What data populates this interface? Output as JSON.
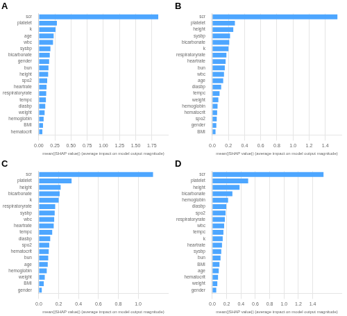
{
  "chart_data": [
    {
      "type": "bar",
      "orientation": "horizontal",
      "title": "A",
      "x_label": "mean(|SHAP value|) (average impact on model output magnitude)",
      "categories": [
        "scr",
        "platelet",
        "k",
        "age",
        "wbc",
        "sysbp",
        "bicarbonate",
        "gender",
        "bun",
        "height",
        "spo2",
        "heartrate",
        "respiratoryrate",
        "tempc",
        "diasbp",
        "weight",
        "hemoglobin",
        "BMI",
        "hematocrit"
      ],
      "values": [
        1.85,
        0.28,
        0.26,
        0.23,
        0.22,
        0.18,
        0.17,
        0.16,
        0.15,
        0.145,
        0.13,
        0.12,
        0.115,
        0.11,
        0.1,
        0.09,
        0.075,
        0.065,
        0.055
      ],
      "color": "#4da6ff",
      "xlim": [
        0,
        2.0
      ],
      "xticks": [
        {
          "value": 0.0,
          "label": "0.00"
        },
        0.25,
        {
          "value": 0.5,
          "label": "0.50"
        },
        0.75,
        {
          "value": 1.0,
          "label": "1.00"
        },
        1.25,
        {
          "value": 1.5,
          "label": "1.50"
        },
        1.75
      ],
      "grid": true
    },
    {
      "type": "bar",
      "orientation": "horizontal",
      "title": "B",
      "x_label": "mean(|SHAP value|) (average impact on model output magnitude)",
      "categories": [
        "scr",
        "platelet",
        "height",
        "sysbp",
        "bicarbonate",
        "k",
        "respiratoryrate",
        "heartrate",
        "bun",
        "wbc",
        "age",
        "diasbp",
        "tempc",
        "weight",
        "hemoglobin",
        "hematocrit",
        "spo2",
        "gender",
        "BMI"
      ],
      "values": [
        1.55,
        0.28,
        0.26,
        0.22,
        0.21,
        0.2,
        0.175,
        0.165,
        0.155,
        0.145,
        0.135,
        0.11,
        0.09,
        0.075,
        0.065,
        0.06,
        0.055,
        0.05,
        0.04
      ],
      "color": "#4da6ff",
      "xlim": [
        0,
        1.6
      ],
      "xticks": [
        {
          "value": 0.0,
          "label": "0.0"
        },
        0.2,
        0.4,
        0.6,
        0.8,
        {
          "value": 1.0,
          "label": "1.0"
        },
        1.2,
        1.4
      ],
      "grid": true
    },
    {
      "type": "bar",
      "orientation": "horizontal",
      "title": "C",
      "x_label": "mean(|SHAP value|) (average impact on model output magnitude)",
      "categories": [
        "scr",
        "platelet",
        "height",
        "bicarbonate",
        "k",
        "respiratoryrate",
        "sysbp",
        "wbc",
        "heartrate",
        "tempc",
        "diasbp",
        "spo2",
        "hematocrit",
        "bun",
        "age",
        "hemoglobin",
        "weight",
        "BMI",
        "gender"
      ],
      "values": [
        1.15,
        0.33,
        0.22,
        0.21,
        0.2,
        0.165,
        0.16,
        0.155,
        0.15,
        0.135,
        0.115,
        0.105,
        0.1,
        0.095,
        0.09,
        0.08,
        0.06,
        0.05,
        0.03
      ],
      "color": "#4da6ff",
      "xlim": [
        0,
        1.3
      ],
      "xticks": [
        {
          "value": 0.0,
          "label": "0.0"
        },
        0.2,
        0.4,
        0.6,
        0.8,
        {
          "value": 1.0,
          "label": "1.0"
        }
      ],
      "grid": true
    },
    {
      "type": "bar",
      "orientation": "horizontal",
      "title": "D",
      "x_label": "mean(|SHAP value|) (average impact on model output magnitude)",
      "categories": [
        "scr",
        "platelet",
        "height",
        "bicarbonate",
        "hemoglobin",
        "diasbp",
        "spo2",
        "respiratoryrate",
        "wbc",
        "tempc",
        "k",
        "heartrate",
        "sysbp",
        "bun",
        "BMI",
        "age",
        "hematocrit",
        "weight",
        "gender"
      ],
      "values": [
        1.55,
        0.5,
        0.38,
        0.28,
        0.22,
        0.195,
        0.185,
        0.175,
        0.165,
        0.155,
        0.145,
        0.135,
        0.125,
        0.115,
        0.1,
        0.09,
        0.08,
        0.07,
        0.055
      ],
      "color": "#4da6ff",
      "xlim": [
        0,
        1.8
      ],
      "xticks": [
        {
          "value": 0.0,
          "label": "0.0"
        },
        0.2,
        0.4,
        0.6,
        0.8,
        {
          "value": 1.0,
          "label": "1.0"
        },
        1.2,
        1.4
      ],
      "grid": true
    }
  ]
}
